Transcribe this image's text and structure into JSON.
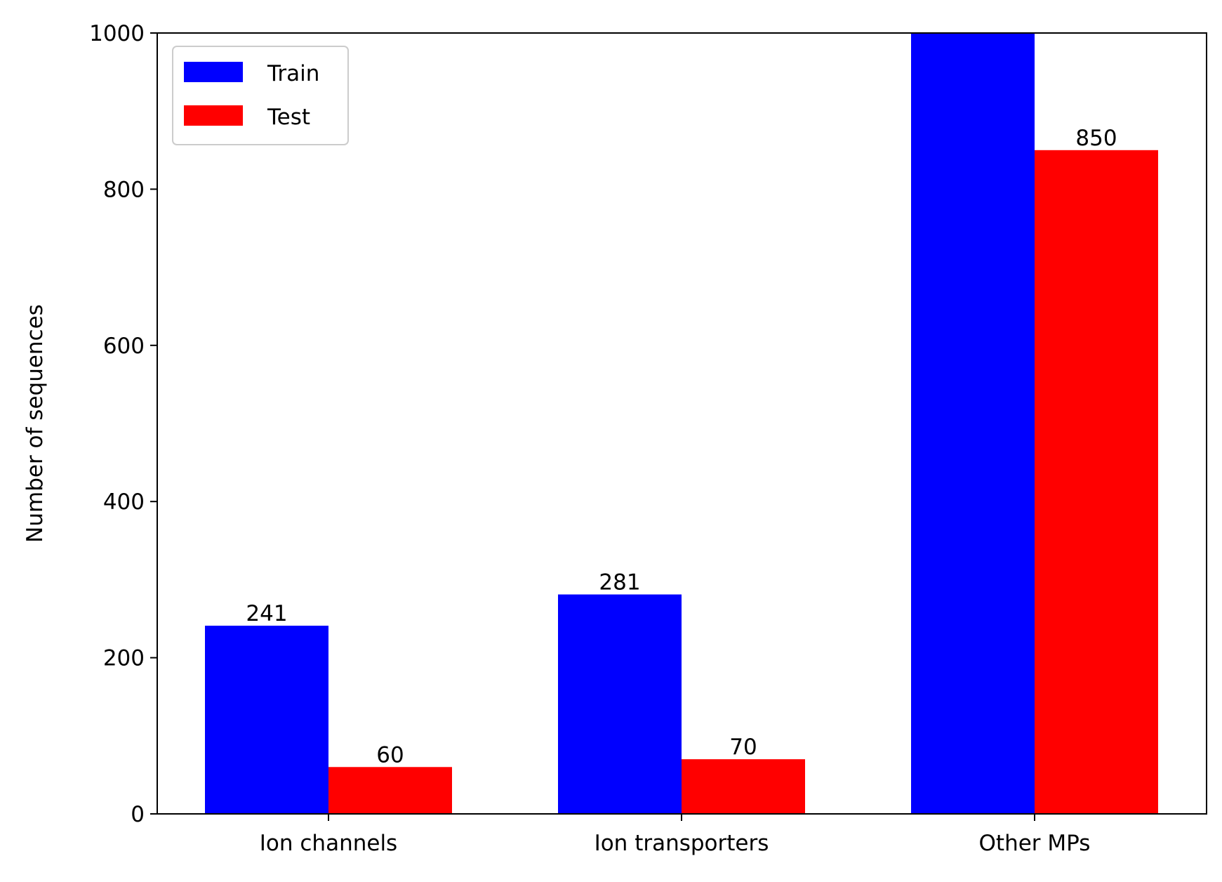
{
  "chart_data": {
    "type": "bar",
    "title": "",
    "xlabel": "",
    "ylabel": "Number of sequences",
    "ylim": [
      0,
      1000
    ],
    "yticks": [
      0,
      200,
      400,
      600,
      800,
      1000
    ],
    "categories": [
      "Ion channels",
      "Ion transporters",
      "Other MPs"
    ],
    "series": [
      {
        "name": "Train",
        "color": "#0000ff",
        "values": [
          241,
          281,
          1000
        ],
        "labels": [
          "241",
          "281",
          ""
        ]
      },
      {
        "name": "Test",
        "color": "#ff0000",
        "values": [
          60,
          70,
          850
        ],
        "labels": [
          "60",
          "70",
          "850"
        ]
      }
    ],
    "legend": {
      "placement": "top-left",
      "entries": [
        "Train",
        "Test"
      ]
    },
    "grid": false
  }
}
